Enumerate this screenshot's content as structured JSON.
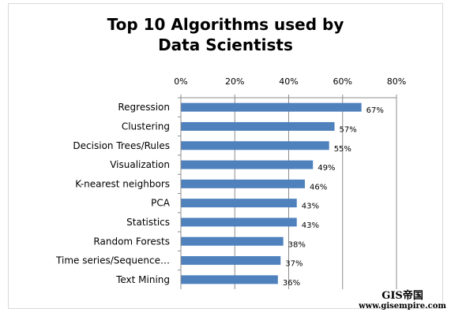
{
  "chart_data": {
    "type": "bar",
    "orientation": "horizontal",
    "title_lines": [
      "Top 10 Algorithms used by",
      "Data Scientists"
    ],
    "categories": [
      "Regression",
      "Clustering",
      "Decision Trees/Rules",
      "Visualization",
      "K-nearest neighbors",
      "PCA",
      "Statistics",
      "Random Forests",
      "Time series/Sequence…",
      "Text Mining"
    ],
    "values": [
      67,
      57,
      55,
      49,
      46,
      43,
      43,
      38,
      37,
      36
    ],
    "data_labels": [
      "67%",
      "57%",
      "55%",
      "49%",
      "46%",
      "43%",
      "43%",
      "38%",
      "37%",
      "36%"
    ],
    "xlim": [
      0,
      80
    ],
    "x_ticks": [
      0,
      20,
      40,
      60,
      80
    ],
    "x_tick_labels": [
      "0%",
      "20%",
      "40%",
      "60%",
      "80%"
    ],
    "x_axis_position": "top",
    "grid": true,
    "legend": "none",
    "bar_color": "#4f81bd"
  },
  "watermark": {
    "top": "GIS帝国",
    "url": "www.gisempire.com"
  }
}
